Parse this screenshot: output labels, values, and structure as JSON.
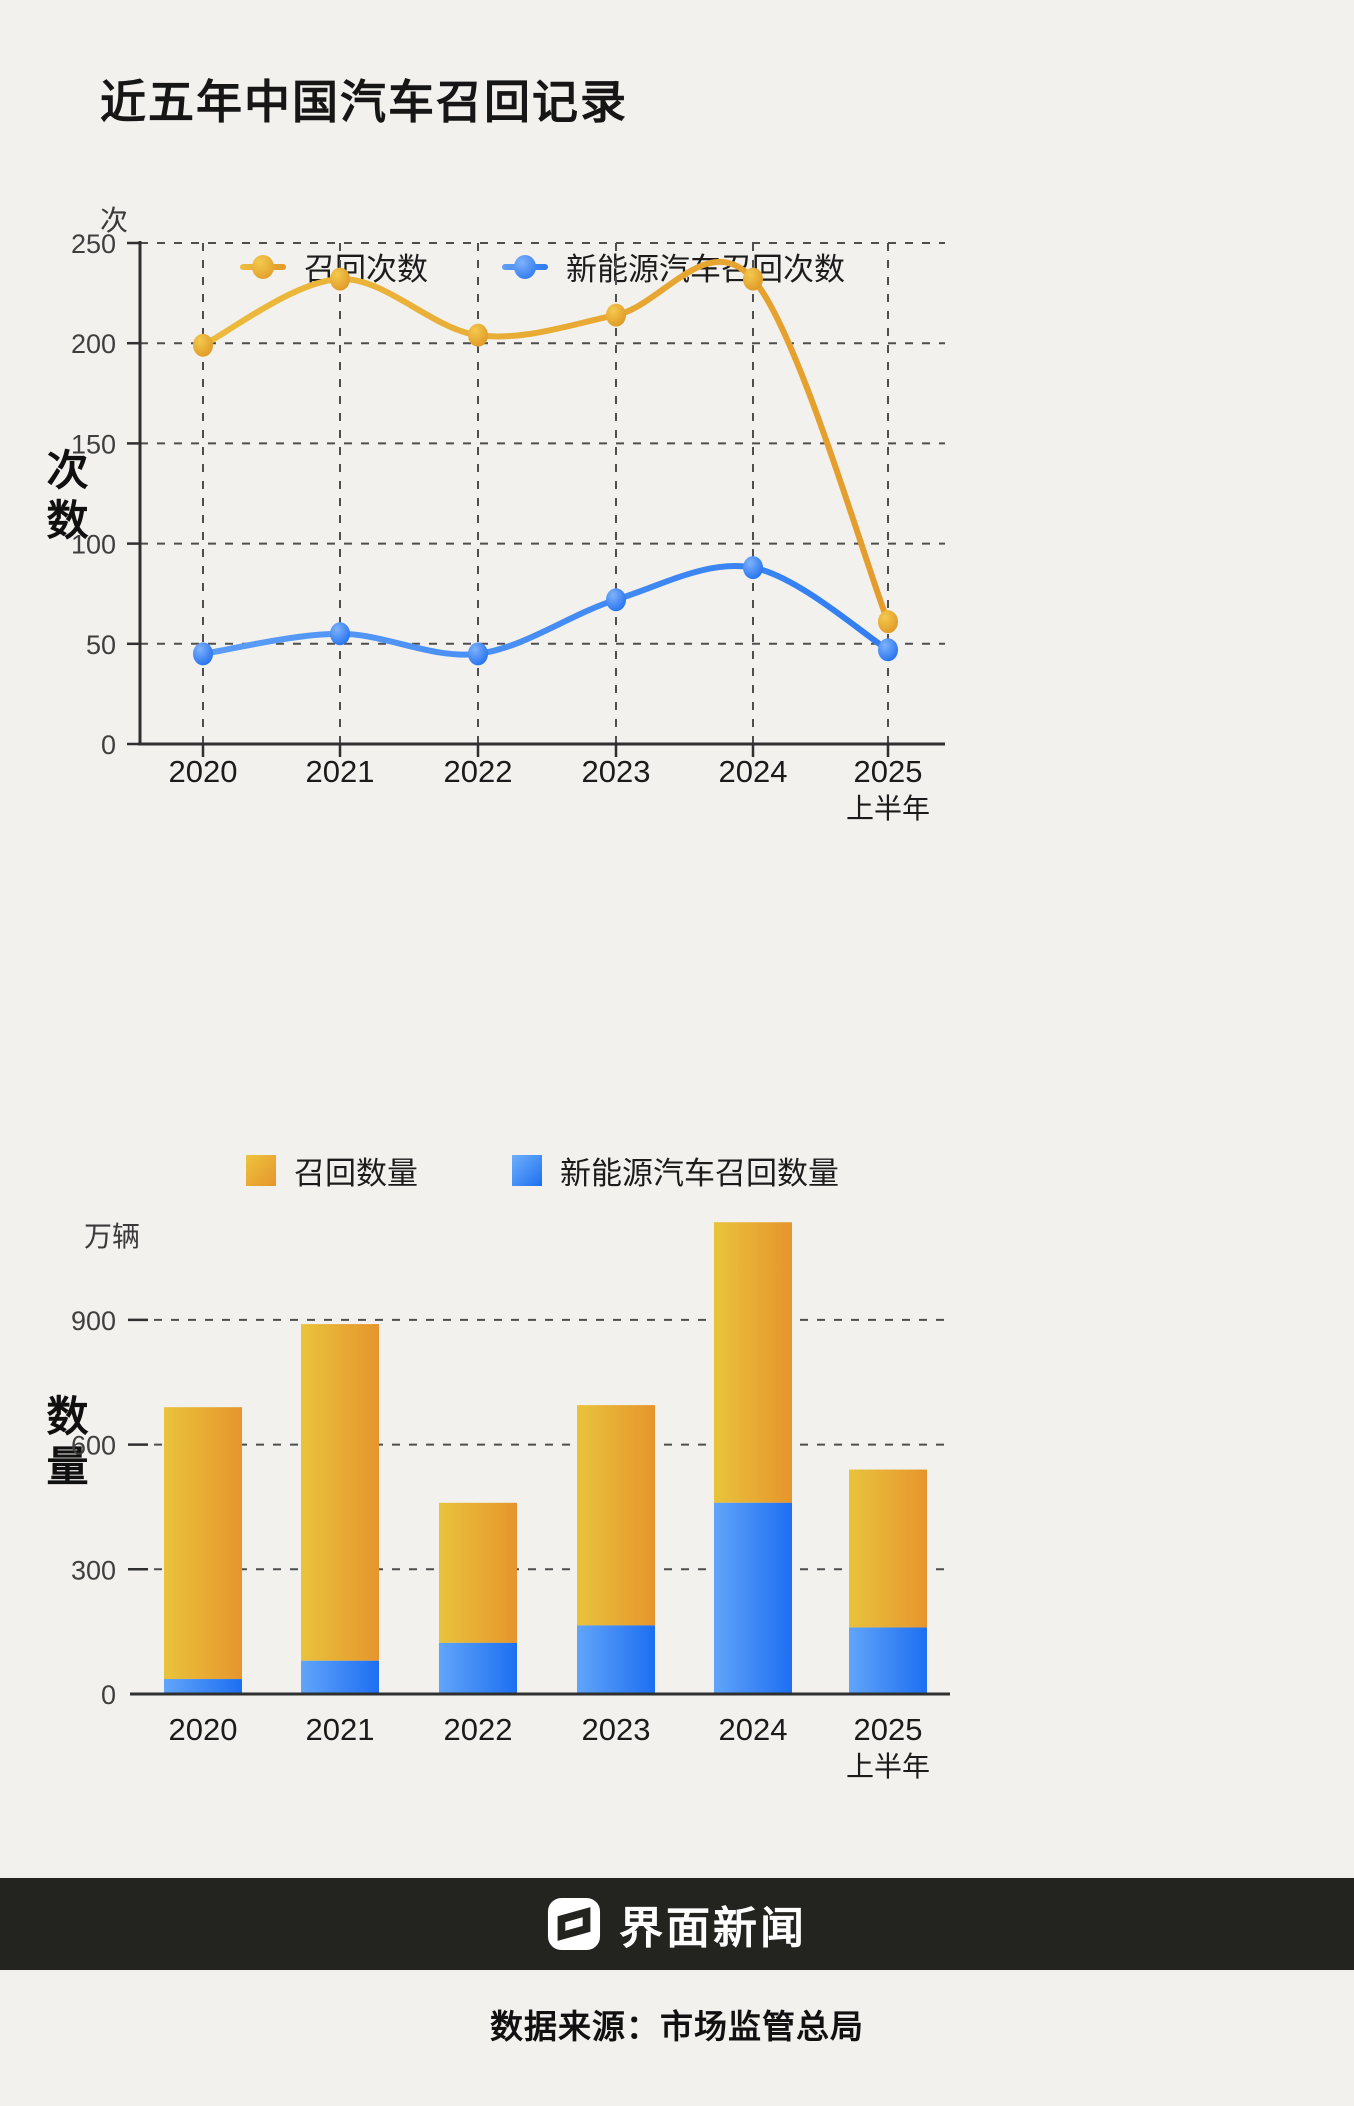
{
  "page": {
    "title": "近五年中国汽车召回记录",
    "background": "#f2f1ee"
  },
  "colors": {
    "yellow_light": "#EDBD3E",
    "yellow_dark": "#E39A2B",
    "blue_light": "#5E9FF8",
    "blue_dark": "#2E7BF0",
    "grid": "#4e4e4e",
    "axis": "#2f2f2f",
    "text": "#1c1c1c",
    "footer_bar": "#232320"
  },
  "chart_data": [
    {
      "type": "line",
      "unit": "次",
      "ylabel": "次数",
      "categories": [
        "2020",
        "2021",
        "2022",
        "2023",
        "2024",
        "2025"
      ],
      "category_sublabels": [
        "",
        "",
        "",
        "",
        "",
        "上半年"
      ],
      "yticks": [
        0,
        50,
        100,
        150,
        200,
        250
      ],
      "ylim": [
        0,
        250
      ],
      "grid": true,
      "legend_position": "top",
      "series": [
        {
          "name": "召回次数",
          "color": "yellow",
          "values": [
            199,
            232,
            204,
            214,
            232,
            61
          ]
        },
        {
          "name": "新能源汽车召回次数",
          "color": "blue",
          "values": [
            45,
            55,
            45,
            72,
            88,
            47
          ]
        }
      ]
    },
    {
      "type": "stacked-bar",
      "unit": "万辆",
      "ylabel": "数量",
      "categories": [
        "2020",
        "2021",
        "2022",
        "2023",
        "2024",
        "2025"
      ],
      "category_sublabels": [
        "",
        "",
        "",
        "",
        "",
        "上半年"
      ],
      "yticks": [
        0,
        300,
        600,
        900
      ],
      "ylim": [
        0,
        1150
      ],
      "grid": true,
      "legend_position": "top",
      "series": [
        {
          "name": "召回数量",
          "color": "yellow",
          "role": "total",
          "values": [
            690,
            890,
            460,
            695,
            1135,
            540
          ]
        },
        {
          "name": "新能源汽车召回数量",
          "color": "blue",
          "role": "part",
          "values": [
            36,
            80,
            123,
            165,
            460,
            160
          ]
        }
      ]
    }
  ],
  "footer": {
    "brand": "界面新闻",
    "source": "数据来源：市场监管总局"
  }
}
